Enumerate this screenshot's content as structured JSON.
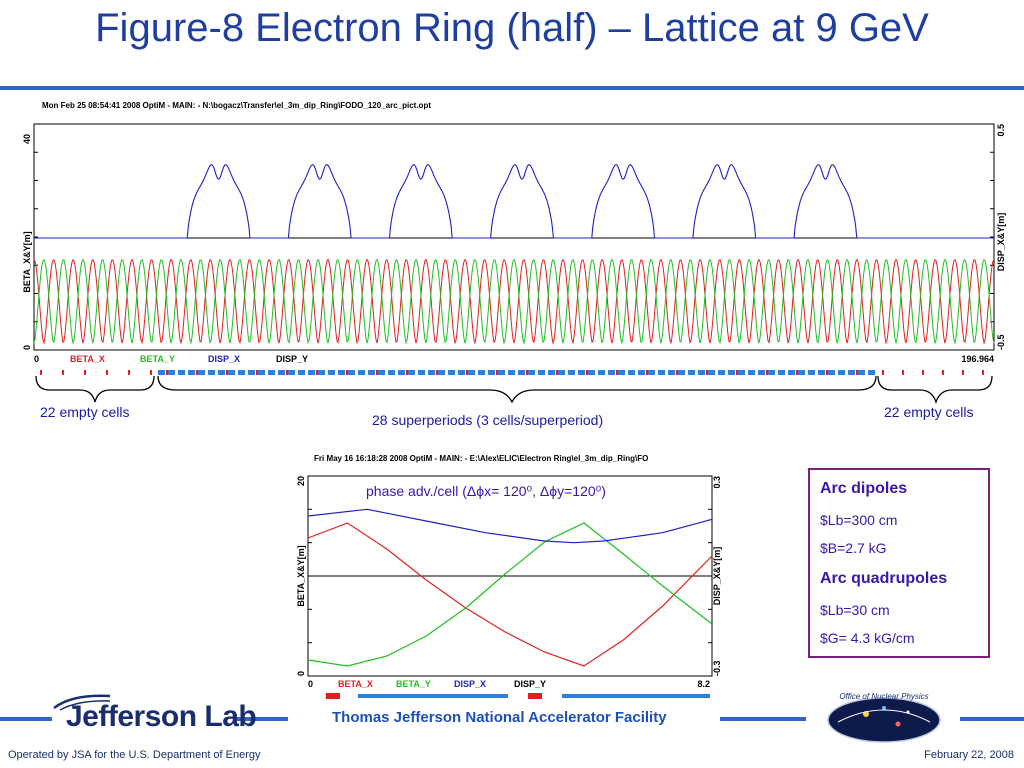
{
  "slide": {
    "title": "Figure-8 Electron Ring (half) – Lattice at 9 GeV",
    "facility": "Thomas Jefferson National Accelerator Facility",
    "logo_text": "Jefferson Lab",
    "operated_by": "Operated by JSA for the U.S. Department of Energy",
    "date": "February 22,  2008",
    "doe_logo_text": "Office of Nuclear Physics"
  },
  "annotations": {
    "left_cells": "22 empty cells",
    "right_cells": "22 empty cells",
    "superperiods": "28 superperiods (3 cells/superperiod)",
    "phase_advance": "phase adv./cell (Δϕx= 120⁰, Δϕy=120⁰)"
  },
  "info_box": {
    "dipoles_title": "Arc dipoles",
    "dipoles_lb": "$Lb=300 cm",
    "dipoles_b": "$B=2.7 kG",
    "quads_title": "Arc quadrupoles",
    "quads_lb": "$Lb=30 cm",
    "quads_g": "$G= 4.3 kG/cm"
  },
  "colors": {
    "beta_x": "#e02020",
    "beta_y": "#20c020",
    "disp_x": "#2020c0",
    "disp_y": "#000000",
    "title": "#1f3fa0",
    "accent": "#2f66c4",
    "box_border": "#7a1f7a"
  },
  "chart_data": [
    {
      "type": "line",
      "header": "Mon Feb 25 08:54:41 2008     OptiM - MAIN:  - N:\\bogacz\\Transfer\\el_3m_dip_Ring\\FODO_120_arc_pict.opt",
      "ylabel": "BETA_X&Y[m]",
      "y2label": "DISP_X&Y[m]",
      "xlim": [
        0,
        196.964
      ],
      "ylim": [
        0,
        40
      ],
      "y2lim": [
        -0.5,
        0.5
      ],
      "x_tick_labels": [
        "0",
        "196.964"
      ],
      "y_tick_labels": [
        "0",
        "40"
      ],
      "y2_tick_labels": [
        "-0.5",
        "0.5"
      ],
      "legend": [
        "BETA_X",
        "BETA_Y",
        "DISP_X",
        "DISP_Y"
      ],
      "series": [
        {
          "name": "BETA_X",
          "shape": "FODO cell oscillation, peaks ~16 m, ~49 peaks"
        },
        {
          "name": "BETA_Y",
          "shape": "FODO cell oscillation, peaks ~16 m, ~49 peaks, out of phase with BETA_X"
        },
        {
          "name": "DISP_X",
          "shape": "zero over empty cells, double-hump bumps peaking ~0.4 m, one per superperiod"
        },
        {
          "name": "DISP_Y",
          "shape": "0 everywhere"
        }
      ],
      "dispersion_bumps_count": 7,
      "beta_peaks_count": 49
    },
    {
      "type": "line",
      "header": "Fri May 16 16:18:28 2008     OptiM - MAIN:  - E:\\Alex\\ELIC\\Electron Ring\\el_3m_dip_Ring\\FO",
      "ylabel": "BETA_X&Y[m]",
      "y2label": "DISP_X&Y[m]",
      "xlim": [
        0,
        8.2
      ],
      "ylim": [
        0,
        20
      ],
      "y2lim": [
        -0.3,
        0.3
      ],
      "x_tick_labels": [
        "0",
        "8.2"
      ],
      "y_tick_labels": [
        "0",
        "20"
      ],
      "y2_tick_labels": [
        "-0.3",
        "0.3"
      ],
      "legend": [
        "BETA_X",
        "BETA_Y",
        "DISP_X",
        "DISP_Y"
      ],
      "series": [
        {
          "name": "BETA_X",
          "x": [
            0,
            0.8,
            1.6,
            2.4,
            3.2,
            4.0,
            4.8,
            5.6,
            6.4,
            7.2,
            8.2
          ],
          "y": [
            13.8,
            15.3,
            12.7,
            9.6,
            6.8,
            4.4,
            2.4,
            1.0,
            3.6,
            7.0,
            12.0
          ]
        },
        {
          "name": "BETA_Y",
          "x": [
            0,
            0.8,
            1.6,
            2.4,
            3.2,
            4.0,
            4.8,
            5.6,
            6.4,
            7.2,
            8.2
          ],
          "y": [
            1.6,
            1.0,
            2.0,
            4.0,
            6.8,
            10.2,
            13.4,
            15.3,
            12.2,
            9.0,
            5.2
          ]
        },
        {
          "name": "DISP_X",
          "x": [
            0,
            1.2,
            2.4,
            3.6,
            4.8,
            5.4,
            6.0,
            7.2,
            8.2
          ],
          "y": [
            0.18,
            0.2,
            0.165,
            0.13,
            0.105,
            0.1,
            0.105,
            0.13,
            0.17
          ]
        },
        {
          "name": "DISP_Y",
          "x": [
            0,
            8.2
          ],
          "y": [
            0,
            0
          ]
        }
      ]
    }
  ]
}
